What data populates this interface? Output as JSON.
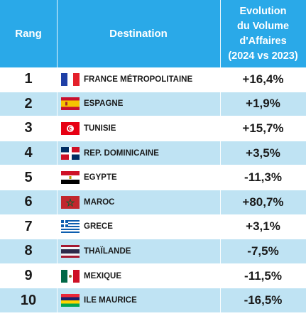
{
  "header": {
    "rank_label": "Rang",
    "destination_label": "Destination",
    "evolution_lines": [
      "Evolution",
      "du Volume",
      "d'Affaires",
      "(2024 vs 2023)"
    ]
  },
  "rows": [
    {
      "rank": "1",
      "destination": "FRANCE MÉTROPOLITAINE",
      "evolution": "+16,4%",
      "flag": "france-flag-icon"
    },
    {
      "rank": "2",
      "destination": "ESPAGNE",
      "evolution": "+1,9%",
      "flag": "spain-flag-icon"
    },
    {
      "rank": "3",
      "destination": "TUNISIE",
      "evolution": "+15,7%",
      "flag": "tunisia-flag-icon"
    },
    {
      "rank": "4",
      "destination": "REP. DOMINICAINE",
      "evolution": "+3,5%",
      "flag": "dominican-republic-flag-icon"
    },
    {
      "rank": "5",
      "destination": "EGYPTE",
      "evolution": "-11,3%",
      "flag": "egypt-flag-icon"
    },
    {
      "rank": "6",
      "destination": "MAROC",
      "evolution": "+80,7%",
      "flag": "morocco-flag-icon"
    },
    {
      "rank": "7",
      "destination": "GRECE",
      "evolution": "+3,1%",
      "flag": "greece-flag-icon"
    },
    {
      "rank": "8",
      "destination": "THAÏLANDE",
      "evolution": "-7,5%",
      "flag": "thailand-flag-icon"
    },
    {
      "rank": "9",
      "destination": "MEXIQUE",
      "evolution": "-11,5%",
      "flag": "mexico-flag-icon"
    },
    {
      "rank": "10",
      "destination": "ILE MAURICE",
      "evolution": "-16,5%",
      "flag": "mauritius-flag-icon"
    }
  ],
  "colors": {
    "header_bg": "#2aa9e8",
    "stripe": "#bfe3f3"
  }
}
